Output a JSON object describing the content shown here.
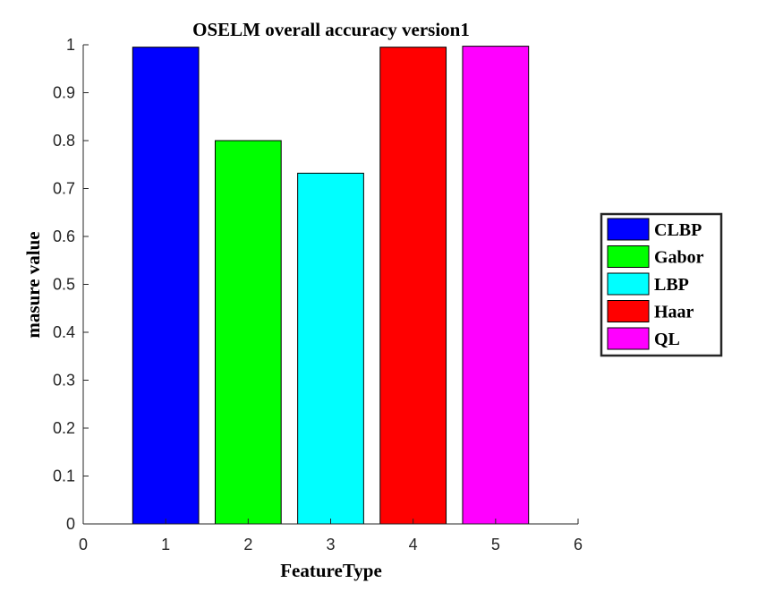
{
  "chart_data": {
    "type": "bar",
    "title": "OSELM overall accuracy version1",
    "xlabel": "FeatureType",
    "ylabel": "masure value",
    "xlim": [
      0,
      6
    ],
    "ylim": [
      0,
      1
    ],
    "x_ticks": [
      "0",
      "1",
      "2",
      "3",
      "4",
      "5",
      "6"
    ],
    "y_ticks": [
      "0",
      "0.1",
      "0.2",
      "0.3",
      "0.4",
      "0.5",
      "0.6",
      "0.7",
      "0.8",
      "0.9",
      "1"
    ],
    "grid": false,
    "legend_position": "outside-right",
    "series": [
      {
        "name": "CLBP",
        "x": 1,
        "value": 0.995,
        "color": "#0000ff"
      },
      {
        "name": "Gabor",
        "x": 2,
        "value": 0.8,
        "color": "#00ff00"
      },
      {
        "name": "LBP",
        "x": 3,
        "value": 0.732,
        "color": "#00ffff"
      },
      {
        "name": "Haar",
        "x": 4,
        "value": 0.995,
        "color": "#ff0000"
      },
      {
        "name": "QL",
        "x": 5,
        "value": 0.997,
        "color": "#ff00ff"
      }
    ]
  }
}
